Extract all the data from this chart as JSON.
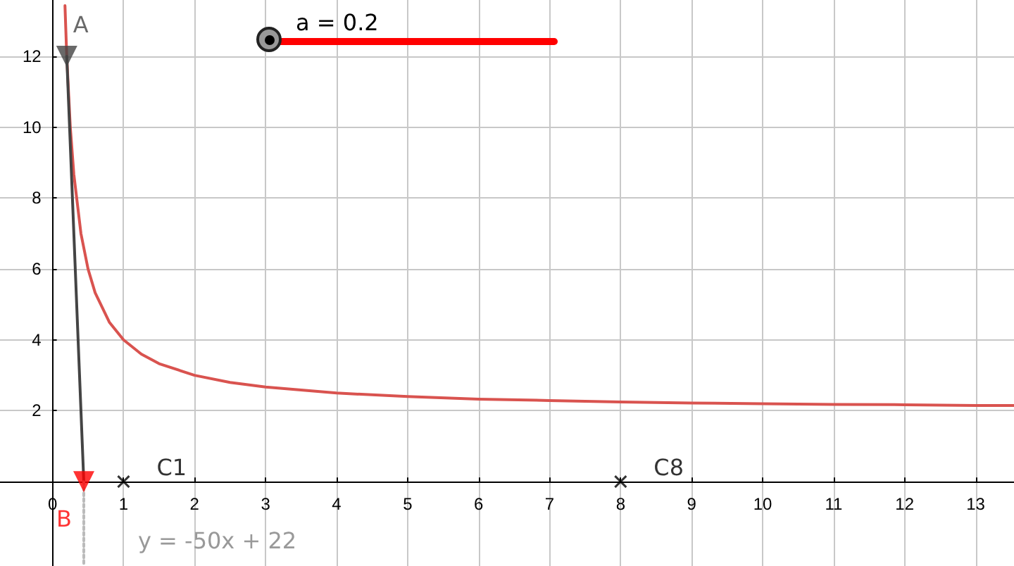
{
  "chart_data": {
    "type": "line",
    "xlim": [
      -0.74,
      13.54
    ],
    "ylim": [
      -2.38,
      13.59
    ],
    "xticks": [
      0,
      1,
      2,
      3,
      4,
      5,
      6,
      7,
      8,
      9,
      10,
      11,
      12,
      13
    ],
    "yticks": [
      2,
      4,
      6,
      8,
      10,
      12
    ],
    "grid": true,
    "legend": false,
    "marker": "none",
    "annotations": [
      "a = 0.2",
      "y = -50x + 22"
    ],
    "series": [
      {
        "type": "line",
        "color": "#d9534f",
        "x": [
          0.175,
          0.2,
          0.25,
          0.3,
          0.4,
          0.5,
          0.6,
          0.8,
          1,
          1.25,
          1.5,
          2,
          2.5,
          3,
          4,
          5,
          6,
          7,
          8,
          9,
          10,
          11,
          12,
          13,
          13.54
        ],
        "values": [
          13.43,
          12,
          10,
          8.67,
          7,
          6,
          5.33,
          4.5,
          4,
          3.6,
          3.33,
          3,
          2.8,
          2.67,
          2.5,
          2.4,
          2.33,
          2.29,
          2.25,
          2.22,
          2.2,
          2.18,
          2.17,
          2.15,
          2.15
        ]
      },
      {
        "type": "line",
        "color": "#444444",
        "x": [
          0.2,
          0.44
        ],
        "values": [
          12,
          0
        ]
      },
      {
        "type": "line",
        "color": "#bbbbbb",
        "line_style": "dotted",
        "x": [
          0.44,
          0.44
        ],
        "values": [
          0,
          -2.38
        ]
      },
      {
        "type": "scatter",
        "name": "A",
        "color": "#444444",
        "marker": "triangle",
        "x": [
          0.2
        ],
        "values": [
          12
        ]
      },
      {
        "type": "scatter",
        "name": "B",
        "color": "#ff0000",
        "marker": "triangle",
        "x": [
          0.44
        ],
        "values": [
          0
        ]
      },
      {
        "type": "scatter",
        "name": "C1",
        "color": "#000000",
        "marker": "cross",
        "x": [
          1
        ],
        "values": [
          0
        ]
      },
      {
        "type": "scatter",
        "name": "C8",
        "color": "#000000",
        "marker": "cross",
        "x": [
          8
        ],
        "values": [
          0
        ]
      }
    ]
  }
}
